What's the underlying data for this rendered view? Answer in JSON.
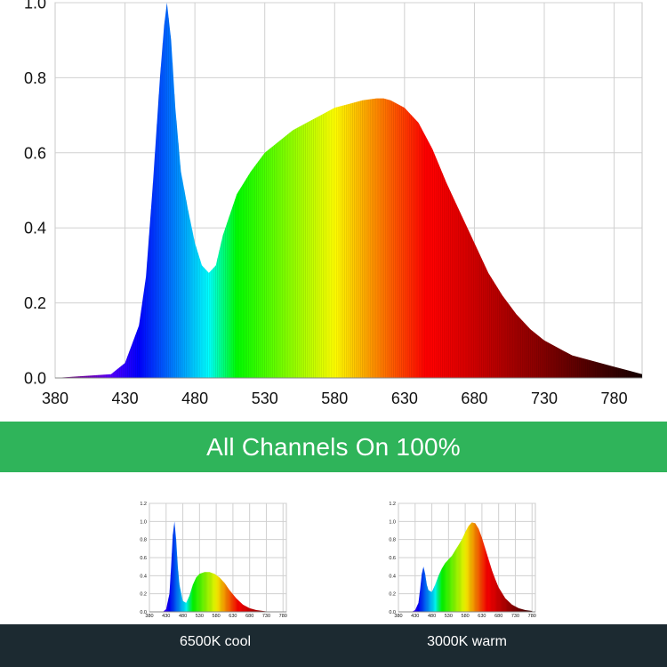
{
  "banner": {
    "title": "All Channels On 100%"
  },
  "chart_data": [
    {
      "type": "area",
      "title": "",
      "xlabel": "",
      "ylabel": "",
      "xlim": [
        380,
        800
      ],
      "ylim": [
        0,
        1.0
      ],
      "x_ticks": [
        380,
        430,
        480,
        530,
        580,
        630,
        680,
        730,
        780
      ],
      "y_ticks": [
        0.0,
        0.2,
        0.4,
        0.6,
        0.8,
        1.0
      ],
      "y_tick_labels": [
        "0.0",
        "0.2",
        "0.4",
        "0.6",
        "0.8",
        "1.0"
      ],
      "grid": true,
      "fill": "spectral-rainbow",
      "x": [
        380,
        400,
        420,
        430,
        440,
        445,
        450,
        455,
        458,
        460,
        463,
        466,
        470,
        475,
        480,
        485,
        490,
        495,
        500,
        510,
        520,
        530,
        540,
        550,
        560,
        570,
        580,
        590,
        600,
        610,
        615,
        620,
        630,
        640,
        650,
        660,
        670,
        680,
        690,
        700,
        710,
        720,
        730,
        740,
        750,
        760,
        770,
        780,
        790,
        800
      ],
      "y": [
        0.0,
        0.005,
        0.01,
        0.04,
        0.14,
        0.27,
        0.52,
        0.8,
        0.94,
        1.0,
        0.9,
        0.72,
        0.55,
        0.45,
        0.36,
        0.3,
        0.28,
        0.3,
        0.38,
        0.49,
        0.55,
        0.6,
        0.63,
        0.66,
        0.68,
        0.7,
        0.72,
        0.73,
        0.74,
        0.745,
        0.745,
        0.74,
        0.72,
        0.68,
        0.61,
        0.52,
        0.44,
        0.36,
        0.28,
        0.22,
        0.17,
        0.13,
        0.1,
        0.08,
        0.06,
        0.05,
        0.04,
        0.03,
        0.02,
        0.01
      ]
    },
    {
      "type": "area",
      "title": "",
      "ylim": [
        0,
        1.2
      ],
      "xlim": [
        380,
        790
      ],
      "x_ticks": [
        380,
        430,
        480,
        530,
        580,
        630,
        680,
        730,
        780
      ],
      "y_ticks": [
        0.0,
        0.2,
        0.4,
        0.6,
        0.8,
        1.0,
        1.2
      ],
      "y_tick_labels": [
        "0.0",
        "0.2",
        "0.4",
        "0.6",
        "0.8",
        "1.0",
        "1.2"
      ],
      "grid": true,
      "caption": "6500K cool",
      "x": [
        380,
        420,
        430,
        440,
        445,
        450,
        455,
        460,
        465,
        470,
        480,
        490,
        500,
        510,
        520,
        530,
        545,
        560,
        575,
        590,
        605,
        620,
        640,
        660,
        680,
        700,
        720,
        740,
        760,
        780
      ],
      "y": [
        0.0,
        0.0,
        0.03,
        0.2,
        0.5,
        0.85,
        1.0,
        0.8,
        0.5,
        0.3,
        0.12,
        0.1,
        0.18,
        0.3,
        0.38,
        0.42,
        0.44,
        0.44,
        0.42,
        0.38,
        0.32,
        0.24,
        0.15,
        0.08,
        0.04,
        0.02,
        0.01,
        0.0,
        0.0,
        0.0
      ]
    },
    {
      "type": "area",
      "title": "",
      "ylim": [
        0,
        1.2
      ],
      "xlim": [
        380,
        790
      ],
      "x_ticks": [
        380,
        430,
        480,
        530,
        580,
        630,
        680,
        730,
        780
      ],
      "y_ticks": [
        0.0,
        0.2,
        0.4,
        0.6,
        0.8,
        1.0,
        1.2
      ],
      "y_tick_labels": [
        "0.0",
        "0.2",
        "0.4",
        "0.6",
        "0.8",
        "1.0",
        "1.2"
      ],
      "grid": true,
      "caption": "3000K warm",
      "x": [
        380,
        420,
        430,
        440,
        445,
        450,
        455,
        460,
        465,
        470,
        480,
        490,
        500,
        510,
        520,
        530,
        540,
        550,
        560,
        570,
        580,
        590,
        600,
        610,
        620,
        630,
        640,
        650,
        660,
        670,
        680,
        700,
        720,
        740,
        760,
        780
      ],
      "y": [
        0.0,
        0.0,
        0.02,
        0.1,
        0.25,
        0.42,
        0.5,
        0.42,
        0.3,
        0.24,
        0.22,
        0.3,
        0.4,
        0.48,
        0.54,
        0.58,
        0.62,
        0.68,
        0.74,
        0.8,
        0.88,
        0.95,
        0.99,
        0.98,
        0.92,
        0.82,
        0.7,
        0.58,
        0.46,
        0.36,
        0.27,
        0.15,
        0.08,
        0.04,
        0.02,
        0.01
      ]
    }
  ]
}
